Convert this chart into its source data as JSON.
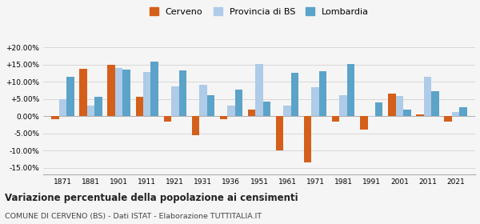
{
  "years": [
    1871,
    1881,
    1901,
    1911,
    1921,
    1931,
    1936,
    1951,
    1961,
    1971,
    1981,
    1991,
    2001,
    2011,
    2021
  ],
  "cerveno": [
    -1.0,
    13.8,
    15.0,
    5.7,
    -1.5,
    -5.5,
    -0.8,
    1.8,
    -10.0,
    -13.5,
    -1.5,
    -4.0,
    6.5,
    0.5,
    -1.5
  ],
  "provincia_bs": [
    4.8,
    3.0,
    14.0,
    12.8,
    8.7,
    9.0,
    3.0,
    15.2,
    3.0,
    8.5,
    6.0,
    -0.2,
    5.9,
    11.5,
    1.3
  ],
  "lombardia": [
    11.5,
    5.5,
    13.5,
    15.8,
    13.2,
    6.0,
    7.8,
    4.3,
    12.5,
    13.0,
    15.2,
    4.0,
    2.0,
    7.2,
    2.5
  ],
  "cerveno_color": "#d45f1a",
  "provincia_bs_color": "#aecbe8",
  "lombardia_color": "#5ba3c9",
  "title": "Variazione percentuale della popolazione ai censimenti",
  "subtitle": "COMUNE DI CERVENO (BS) - Dati ISTAT - Elaborazione TUTTITALIA.IT",
  "ylim": [
    -17,
    22
  ],
  "yticks": [
    -15,
    -10,
    -5,
    0,
    5,
    10,
    15,
    20
  ],
  "ytick_labels": [
    "-15.00%",
    "-10.00%",
    "-5.00%",
    "0.00%",
    "+5.00%",
    "+10.00%",
    "+15.00%",
    "+20.00%"
  ],
  "legend_labels": [
    "Cerveno",
    "Provincia di BS",
    "Lombardia"
  ],
  "background_color": "#f5f5f5"
}
